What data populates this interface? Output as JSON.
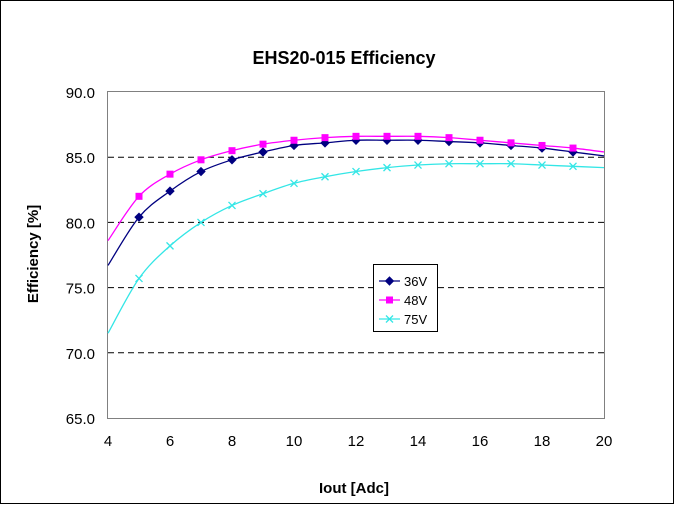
{
  "chart_data": {
    "type": "line",
    "title": "EHS20-015 Efficiency",
    "xlabel": "Iout [Adc]",
    "ylabel": "Efficiency [%]",
    "xlim": [
      4,
      20
    ],
    "ylim": [
      65,
      90
    ],
    "x_ticks": [
      "4",
      "6",
      "8",
      "10",
      "12",
      "14",
      "16",
      "18",
      "20"
    ],
    "y_ticks": [
      "65.0",
      "70.0",
      "75.0",
      "80.0",
      "85.0",
      "90.0"
    ],
    "grid": "horizontal dashed major",
    "legend_position": "center",
    "series": [
      {
        "name": "36V",
        "color": "#000080",
        "marker": "diamond",
        "x": [
          5,
          6,
          7,
          8,
          9,
          10,
          11,
          12,
          13,
          14,
          15,
          16,
          17,
          18,
          19
        ],
        "values": [
          80.4,
          82.4,
          83.9,
          84.8,
          85.4,
          85.9,
          86.1,
          86.3,
          86.3,
          86.3,
          86.2,
          86.1,
          85.9,
          85.7,
          85.4
        ],
        "curve": [
          [
            4,
            76.7
          ],
          [
            5,
            80.4
          ],
          [
            6,
            82.4
          ],
          [
            7,
            83.9
          ],
          [
            8,
            84.8
          ],
          [
            9,
            85.4
          ],
          [
            10,
            85.9
          ],
          [
            11,
            86.1
          ],
          [
            12,
            86.3
          ],
          [
            13,
            86.3
          ],
          [
            14,
            86.3
          ],
          [
            15,
            86.2
          ],
          [
            16,
            86.1
          ],
          [
            17,
            85.9
          ],
          [
            18,
            85.7
          ],
          [
            19,
            85.4
          ],
          [
            20,
            85.1
          ]
        ]
      },
      {
        "name": "48V",
        "color": "#ff00ff",
        "marker": "square",
        "x": [
          5,
          6,
          7,
          8,
          9,
          10,
          11,
          12,
          13,
          14,
          15,
          16,
          17,
          18,
          19
        ],
        "values": [
          82.0,
          83.7,
          84.8,
          85.5,
          86.0,
          86.3,
          86.5,
          86.6,
          86.6,
          86.6,
          86.5,
          86.3,
          86.1,
          85.9,
          85.7
        ],
        "curve": [
          [
            4,
            78.6
          ],
          [
            5,
            82.0
          ],
          [
            6,
            83.7
          ],
          [
            7,
            84.8
          ],
          [
            8,
            85.5
          ],
          [
            9,
            86.0
          ],
          [
            10,
            86.3
          ],
          [
            11,
            86.5
          ],
          [
            12,
            86.6
          ],
          [
            13,
            86.6
          ],
          [
            14,
            86.6
          ],
          [
            15,
            86.5
          ],
          [
            16,
            86.3
          ],
          [
            17,
            86.1
          ],
          [
            18,
            85.9
          ],
          [
            19,
            85.7
          ],
          [
            20,
            85.4
          ]
        ]
      },
      {
        "name": "75V",
        "color": "#33e6e6",
        "marker": "x",
        "x": [
          5,
          6,
          7,
          8,
          9,
          10,
          11,
          12,
          13,
          14,
          15,
          16,
          17,
          18,
          19
        ],
        "values": [
          75.7,
          78.2,
          80.0,
          81.3,
          82.2,
          83.0,
          83.5,
          83.9,
          84.2,
          84.4,
          84.5,
          84.5,
          84.5,
          84.4,
          84.3
        ],
        "curve": [
          [
            4,
            71.5
          ],
          [
            5,
            75.7
          ],
          [
            6,
            78.2
          ],
          [
            7,
            80.0
          ],
          [
            8,
            81.3
          ],
          [
            9,
            82.2
          ],
          [
            10,
            83.0
          ],
          [
            11,
            83.5
          ],
          [
            12,
            83.9
          ],
          [
            13,
            84.2
          ],
          [
            14,
            84.4
          ],
          [
            15,
            84.5
          ],
          [
            16,
            84.5
          ],
          [
            17,
            84.5
          ],
          [
            18,
            84.4
          ],
          [
            19,
            84.3
          ],
          [
            20,
            84.2
          ]
        ]
      }
    ]
  }
}
